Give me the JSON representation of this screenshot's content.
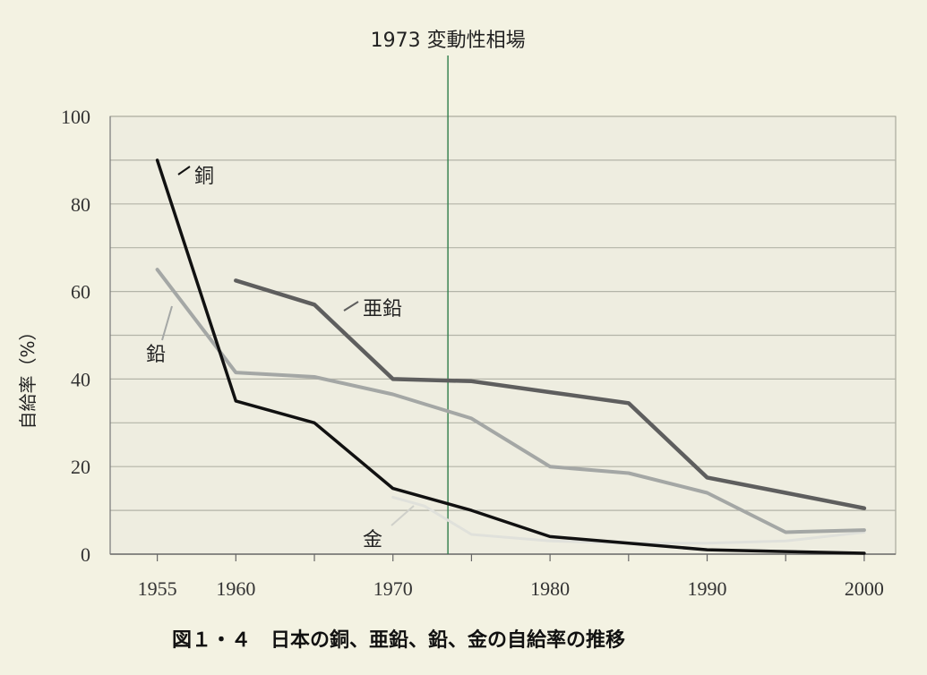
{
  "chart_data": {
    "type": "line",
    "caption": "図１・４　日本の銅、亜鉛、鉛、金の自給率の推移",
    "ylabel": "自給率（%）",
    "xlim": [
      1952,
      2002
    ],
    "ylim": [
      0,
      100
    ],
    "y_ticks": [
      0,
      20,
      40,
      60,
      80,
      100
    ],
    "x_ticks": [
      1955,
      1960,
      1970,
      1980,
      1990,
      2000
    ],
    "grid": "horizontal",
    "event": {
      "x": 1973.5,
      "label": "1973 変動性相場",
      "color": "#2e7d4a"
    },
    "series": [
      {
        "name": "銅",
        "color": "#111111",
        "width": 3.5,
        "points": [
          [
            1955,
            90
          ],
          [
            1960,
            35
          ],
          [
            1965,
            30
          ],
          [
            1970,
            15
          ],
          [
            1975,
            10
          ],
          [
            1980,
            4
          ],
          [
            1985,
            2.5
          ],
          [
            1990,
            1
          ],
          [
            1995,
            0.6
          ],
          [
            2000,
            0.2
          ]
        ]
      },
      {
        "name": "亜鉛",
        "color": "#5e5e5e",
        "width": 4.5,
        "points": [
          [
            1960,
            62.5
          ],
          [
            1965,
            57
          ],
          [
            1970,
            40
          ],
          [
            1975,
            39.5
          ],
          [
            1980,
            37
          ],
          [
            1985,
            34.5
          ],
          [
            1990,
            17.5
          ],
          [
            1995,
            14
          ],
          [
            2000,
            10.5
          ]
        ]
      },
      {
        "name": "鉛",
        "color": "#a4a7a5",
        "width": 4,
        "points": [
          [
            1955,
            65
          ],
          [
            1960,
            41.5
          ],
          [
            1965,
            40.5
          ],
          [
            1970,
            36.5
          ],
          [
            1975,
            31
          ],
          [
            1980,
            20
          ],
          [
            1985,
            18.5
          ],
          [
            1990,
            14
          ],
          [
            1995,
            5
          ],
          [
            2000,
            5.5
          ]
        ]
      },
      {
        "name": "金",
        "color": "#e0e1db",
        "width": 3,
        "points": [
          [
            1970,
            13
          ],
          [
            1972,
            11
          ],
          [
            1975,
            4.5
          ],
          [
            1980,
            3
          ],
          [
            1985,
            2.5
          ],
          [
            1990,
            2.5
          ],
          [
            1995,
            3
          ],
          [
            2000,
            5
          ]
        ]
      }
    ]
  }
}
